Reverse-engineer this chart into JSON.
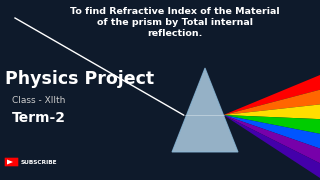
{
  "bg_color": "#0e1a2b",
  "title_line1": "To find Refractive Index of the Material",
  "title_line2": "of the prism by Total internal",
  "title_line3": "reflection.",
  "physics_project": "Physics Project",
  "class_text": "Class - XIIth",
  "term_text": "Term-2",
  "subscribe_text": "SUBSCRIBE",
  "title_color": "#ffffff",
  "physics_color": "#ffffff",
  "class_color": "#cccccc",
  "term_color": "#ffffff",
  "prism_face_color": "#b8d8ee",
  "prism_edge_color": "#8ab8d8",
  "ray_colors": [
    "#ff0000",
    "#ff6600",
    "#ffdd00",
    "#00cc00",
    "#0055ff",
    "#7700aa",
    "#4400aa"
  ],
  "incident_ray_color": "#ffffff",
  "subscribe_bg": "#ff0000",
  "figw": 3.2,
  "figh": 1.8,
  "dpi": 100
}
